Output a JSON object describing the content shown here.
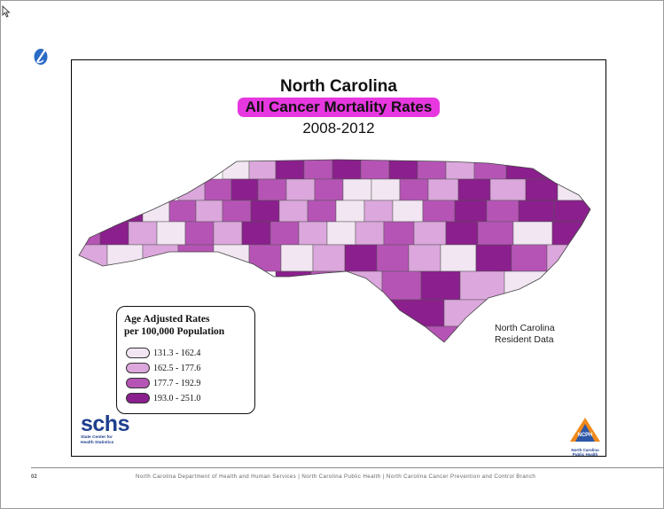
{
  "slide": {
    "title_line1": "North Carolina",
    "title_line2": "All Cancer Mortality Rates",
    "title_line3": "2008-2012",
    "resident_note_line1": "North Carolina",
    "resident_note_line2": "Resident Data"
  },
  "legend": {
    "title_line1": "Age Adjusted Rates",
    "title_line2": "per 100,000 Population",
    "classes": [
      {
        "label": "131.3 - 162.4",
        "color": "#f1e6f1"
      },
      {
        "label": "162.5 - 177.6",
        "color": "#dba7dc"
      },
      {
        "label": "177.7 - 192.9",
        "color": "#b654b6"
      },
      {
        "label": "193.0 - 251.0",
        "color": "#8b1f8d"
      }
    ]
  },
  "logos": {
    "schs_word": "schs",
    "schs_sub1": "State Center for",
    "schs_sub2": "Health Statistics",
    "ncph_mark": "NCPH",
    "ncph_sub1": "North Carolina",
    "ncph_sub2": "Public Health"
  },
  "footer": {
    "page_number": "02",
    "text": "North Carolina Department of Health and Human Services  |  North Carolina Public Health  |  North Carolina Cancer Prevention and Control Branch"
  },
  "icons": {
    "cursor": "arrow-cursor-icon",
    "corner": "ncdhhs-corner-icon"
  }
}
